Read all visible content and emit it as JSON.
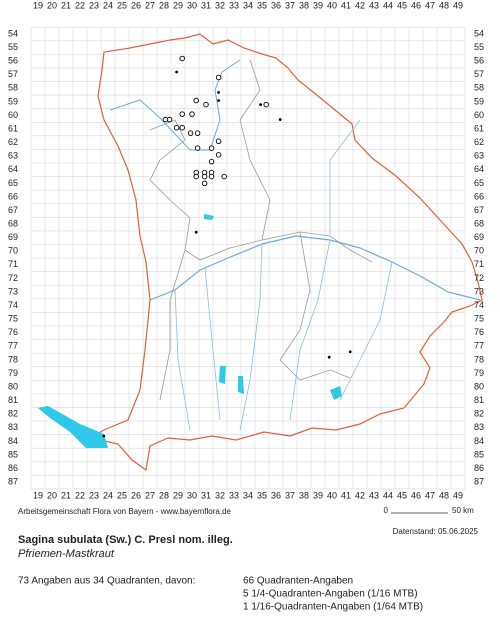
{
  "map": {
    "columns": [
      19,
      20,
      21,
      22,
      23,
      24,
      25,
      26,
      27,
      28,
      29,
      30,
      31,
      32,
      33,
      34,
      35,
      36,
      37,
      38,
      39,
      40,
      41,
      42,
      43,
      44,
      45,
      46,
      47,
      48,
      49
    ],
    "rows": [
      54,
      55,
      56,
      57,
      58,
      59,
      60,
      61,
      62,
      63,
      64,
      65,
      66,
      67,
      68,
      69,
      70,
      71,
      72,
      73,
      74,
      75,
      76,
      77,
      78,
      79,
      80,
      81,
      82,
      83,
      84,
      85,
      86,
      87
    ],
    "points": [
      {
        "col": 29.3,
        "row": 55.8,
        "kind": "open"
      },
      {
        "col": 28.9,
        "row": 56.8,
        "kind": "dot"
      },
      {
        "col": 31.9,
        "row": 57.2,
        "kind": "open"
      },
      {
        "col": 30.3,
        "row": 58.9,
        "kind": "open"
      },
      {
        "col": 31.0,
        "row": 59.2,
        "kind": "open"
      },
      {
        "col": 31.9,
        "row": 58.3,
        "kind": "dot"
      },
      {
        "col": 31.9,
        "row": 58.9,
        "kind": "dot"
      },
      {
        "col": 34.9,
        "row": 59.2,
        "kind": "dot"
      },
      {
        "col": 35.3,
        "row": 59.2,
        "kind": "open"
      },
      {
        "col": 36.3,
        "row": 60.3,
        "kind": "dot"
      },
      {
        "col": 28.1,
        "row": 60.3,
        "kind": "open"
      },
      {
        "col": 28.4,
        "row": 60.3,
        "kind": "open"
      },
      {
        "col": 29.3,
        "row": 59.9,
        "kind": "open"
      },
      {
        "col": 30.0,
        "row": 59.9,
        "kind": "open"
      },
      {
        "col": 28.9,
        "row": 60.9,
        "kind": "open"
      },
      {
        "col": 29.3,
        "row": 60.9,
        "kind": "open"
      },
      {
        "col": 29.9,
        "row": 61.3,
        "kind": "open"
      },
      {
        "col": 30.4,
        "row": 61.3,
        "kind": "open"
      },
      {
        "col": 30.4,
        "row": 62.4,
        "kind": "open"
      },
      {
        "col": 31.4,
        "row": 62.4,
        "kind": "open"
      },
      {
        "col": 31.9,
        "row": 61.9,
        "kind": "open"
      },
      {
        "col": 31.9,
        "row": 62.9,
        "kind": "open"
      },
      {
        "col": 31.4,
        "row": 63.4,
        "kind": "open"
      },
      {
        "col": 30.3,
        "row": 64.2,
        "kind": "open"
      },
      {
        "col": 30.9,
        "row": 64.2,
        "kind": "open"
      },
      {
        "col": 31.4,
        "row": 64.2,
        "kind": "open"
      },
      {
        "col": 30.3,
        "row": 64.5,
        "kind": "open"
      },
      {
        "col": 30.9,
        "row": 64.5,
        "kind": "open"
      },
      {
        "col": 31.4,
        "row": 64.5,
        "kind": "open"
      },
      {
        "col": 32.3,
        "row": 64.5,
        "kind": "open"
      },
      {
        "col": 30.9,
        "row": 65.0,
        "kind": "open"
      },
      {
        "col": 30.3,
        "row": 68.6,
        "kind": "dot"
      },
      {
        "col": 39.8,
        "row": 77.8,
        "kind": "dot"
      },
      {
        "col": 41.3,
        "row": 77.4,
        "kind": "dot"
      },
      {
        "col": 23.7,
        "row": 83.6,
        "kind": "dot"
      }
    ]
  },
  "footer": {
    "credit": "Arbeitsgemeinschaft Flora von Bayern - www.bayernflora.de",
    "scale_start": "0",
    "scale_end": "50 km",
    "date": "Datenstand: 05.06.2025"
  },
  "species": {
    "name": "Sagina subulata (Sw.) C. Presl nom. illeg.",
    "common": "Pfriemen-Mastkraut"
  },
  "summary": {
    "total": "73 Angaben aus 34 Quadranten, davon:",
    "lines": [
      "66 Quadranten-Angaben",
      "5 1/4-Quadranten-Angaben (1/16 MTB)",
      "1 1/16-Quadranten-Angaben (1/64 MTB)"
    ]
  }
}
